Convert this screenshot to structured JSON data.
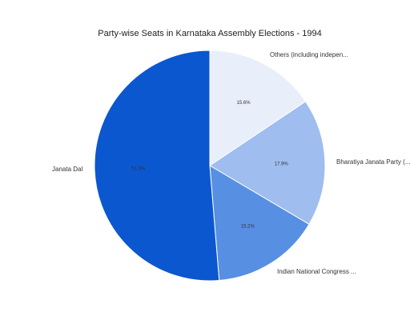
{
  "chart_data": {
    "type": "pie",
    "title": "Party-wise Seats in Karnataka Assembly Elections - 1994",
    "slices": [
      {
        "label": "Others (including indepen...",
        "value": 15.6,
        "display": "15.6%",
        "color": "#e8eefa"
      },
      {
        "label": "Bharatiya Janata Party (...",
        "value": 17.9,
        "display": "17.9%",
        "color": "#9fbdee"
      },
      {
        "label": "Indian National Congress ...",
        "value": 15.2,
        "display": "15.2%",
        "color": "#578fe3"
      },
      {
        "label": "Janata Dal",
        "value": 51.3,
        "display": "51.3%",
        "color": "#0b57d0"
      }
    ],
    "start_angle_deg": 0,
    "direction": "clockwise",
    "legend": "none"
  }
}
